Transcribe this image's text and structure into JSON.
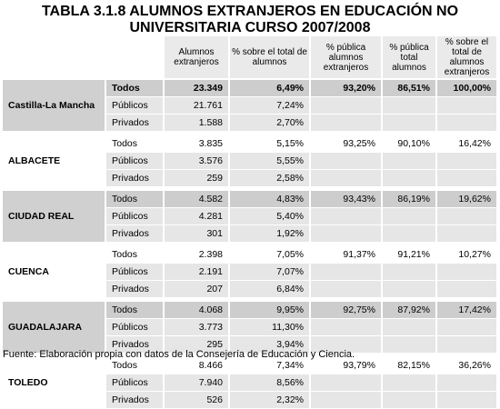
{
  "title_line1": "TABLA 3.1.8 ALUMNOS EXTRANJEROS EN EDUCACIÓN NO",
  "title_line2": "UNIVERSITARIA CURSO 2007/2008",
  "headers": {
    "n": "Alumnos extranjeros",
    "pct_total": "% sobre el total de alumnos",
    "pct_publica_ext": "% pública alumnos extranjeros",
    "pct_publica_total": "% pública total alumnos",
    "pct_sobre_ext": "% sobre el total de alumnos extranjeros"
  },
  "groups": [
    {
      "name": "Castilla-La Mancha",
      "shade": "dark",
      "bold_total": true,
      "rows": [
        {
          "type": "Todos",
          "n": "23.349",
          "pct": "6,49%",
          "pub_ext": "93,20%",
          "pub_tot": "86,51%",
          "ext": "100,00%"
        },
        {
          "type": "Públicos",
          "n": "21.761",
          "pct": "7,24%"
        },
        {
          "type": "Privados",
          "n": "1.588",
          "pct": "2,70%"
        }
      ]
    },
    {
      "name": "ALBACETE",
      "shade": "light",
      "rows": [
        {
          "type": "Todos",
          "n": "3.835",
          "pct": "5,15%",
          "pub_ext": "93,25%",
          "pub_tot": "90,10%",
          "ext": "16,42%"
        },
        {
          "type": "Públicos",
          "n": "3.576",
          "pct": "5,55%"
        },
        {
          "type": "Privados",
          "n": "259",
          "pct": "2,58%"
        }
      ]
    },
    {
      "name": "CIUDAD REAL",
      "shade": "dark",
      "rows": [
        {
          "type": "Todos",
          "n": "4.582",
          "pct": "4,83%",
          "pub_ext": "93,43%",
          "pub_tot": "86,19%",
          "ext": "19,62%"
        },
        {
          "type": "Públicos",
          "n": "4.281",
          "pct": "5,40%"
        },
        {
          "type": "Privados",
          "n": "301",
          "pct": "1,92%"
        }
      ]
    },
    {
      "name": "CUENCA",
      "shade": "light",
      "rows": [
        {
          "type": "Todos",
          "n": "2.398",
          "pct": "7,05%",
          "pub_ext": "91,37%",
          "pub_tot": "91,21%",
          "ext": "10,27%"
        },
        {
          "type": "Públicos",
          "n": "2.191",
          "pct": "7,07%"
        },
        {
          "type": "Privados",
          "n": "207",
          "pct": "6,84%"
        }
      ]
    },
    {
      "name": "GUADALAJARA",
      "shade": "dark",
      "rows": [
        {
          "type": "Todos",
          "n": "4.068",
          "pct": "9,95%",
          "pub_ext": "92,75%",
          "pub_tot": "87,92%",
          "ext": "17,42%"
        },
        {
          "type": "Públicos",
          "n": "3.773",
          "pct": "11,30%"
        },
        {
          "type": "Privados",
          "n": "295",
          "pct": "3,94%"
        }
      ]
    },
    {
      "name": "TOLEDO",
      "shade": "light",
      "rows": [
        {
          "type": "Todos",
          "n": "8.466",
          "pct": "7,34%",
          "pub_ext": "93,79%",
          "pub_tot": "82,15%",
          "ext": "36,26%"
        },
        {
          "type": "Públicos",
          "n": "7.940",
          "pct": "8,56%"
        },
        {
          "type": "Privados",
          "n": "526",
          "pct": "2,32%"
        }
      ]
    }
  ],
  "source": "Fuente: Elaboración propia con datos de la Consejería de Educación y Ciencia."
}
